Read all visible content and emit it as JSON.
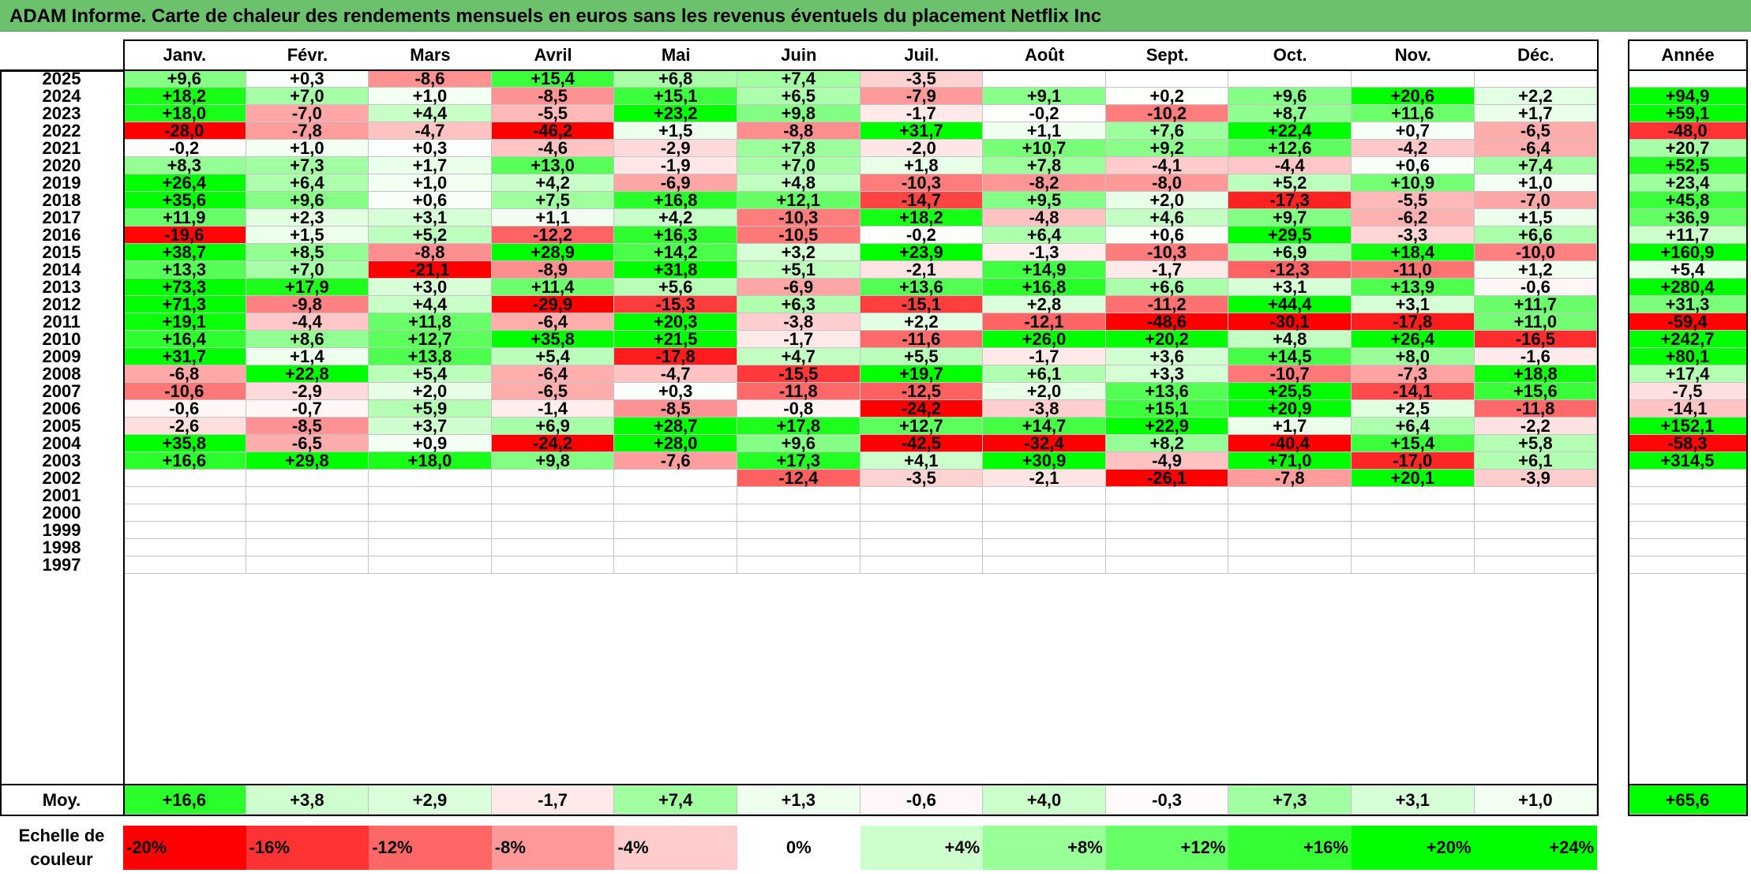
{
  "title": "ADAM Informe. Carte de chaleur des rendements mensuels en euros sans les revenus éventuels du placement Netflix Inc",
  "colors": {
    "title_bar": "#6cc26c",
    "positive": "#00ff00",
    "negative": "#ff0000",
    "neutral": "#ffffff"
  },
  "chart_data": {
    "type": "heatmap",
    "title": "ADAM Informe. Carte de chaleur des rendements mensuels en euros sans les revenus éventuels du placement Netflix Inc",
    "columns": [
      "Janv.",
      "Févr.",
      "Mars",
      "Avril",
      "Mai",
      "Juin",
      "Juil.",
      "Août",
      "Sept.",
      "Oct.",
      "Nov.",
      "Déc."
    ],
    "year_column": "Année",
    "rows": [
      {
        "year": "2025",
        "values": [
          "+9,6",
          "+0,3",
          "-8,6",
          "+15,4",
          "+6,8",
          "+7,4",
          "-3,5",
          "",
          "",
          "",
          "",
          ""
        ],
        "annual": ""
      },
      {
        "year": "2024",
        "values": [
          "+18,2",
          "+7,0",
          "+1,0",
          "-8,5",
          "+15,1",
          "+6,5",
          "-7,9",
          "+9,1",
          "+0,2",
          "+9,6",
          "+20,6",
          "+2,2"
        ],
        "annual": "+94,9"
      },
      {
        "year": "2023",
        "values": [
          "+18,0",
          "-7,0",
          "+4,4",
          "-5,5",
          "+23,2",
          "+9,8",
          "-1,7",
          "-0,2",
          "-10,2",
          "+8,7",
          "+11,6",
          "+1,7"
        ],
        "annual": "+59,1"
      },
      {
        "year": "2022",
        "values": [
          "-28,0",
          "-7,8",
          "-4,7",
          "-46,2",
          "+1,5",
          "-8,8",
          "+31,7",
          "+1,1",
          "+7,6",
          "+22,4",
          "+0,7",
          "-6,5"
        ],
        "annual": "-48,0"
      },
      {
        "year": "2021",
        "values": [
          "-0,2",
          "+1,0",
          "+0,3",
          "-4,6",
          "-2,9",
          "+7,8",
          "-2,0",
          "+10,7",
          "+9,2",
          "+12,6",
          "-4,2",
          "-6,4"
        ],
        "annual": "+20,7"
      },
      {
        "year": "2020",
        "values": [
          "+8,3",
          "+7,3",
          "+1,7",
          "+13,0",
          "-1,9",
          "+7,0",
          "+1,8",
          "+7,8",
          "-4,1",
          "-4,4",
          "+0,6",
          "+7,4"
        ],
        "annual": "+52,5"
      },
      {
        "year": "2019",
        "values": [
          "+26,4",
          "+6,4",
          "+1,0",
          "+4,2",
          "-6,9",
          "+4,8",
          "-10,3",
          "-8,2",
          "-8,0",
          "+5,2",
          "+10,9",
          "+1,0"
        ],
        "annual": "+23,4"
      },
      {
        "year": "2018",
        "values": [
          "+35,6",
          "+9,6",
          "+0,6",
          "+7,5",
          "+16,8",
          "+12,1",
          "-14,7",
          "+9,5",
          "+2,0",
          "-17,3",
          "-5,5",
          "-7,0"
        ],
        "annual": "+45,8"
      },
      {
        "year": "2017",
        "values": [
          "+11,9",
          "+2,3",
          "+3,1",
          "+1,1",
          "+4,2",
          "-10,3",
          "+18,2",
          "-4,8",
          "+4,6",
          "+9,7",
          "-6,2",
          "+1,5"
        ],
        "annual": "+36,9"
      },
      {
        "year": "2016",
        "values": [
          "-19,6",
          "+1,5",
          "+5,2",
          "-12,2",
          "+16,3",
          "-10,5",
          "-0,2",
          "+6,4",
          "+0,6",
          "+29,5",
          "-3,3",
          "+6,6"
        ],
        "annual": "+11,7"
      },
      {
        "year": "2015",
        "values": [
          "+38,7",
          "+8,5",
          "-8,8",
          "+28,9",
          "+14,2",
          "+3,2",
          "+23,9",
          "-1,3",
          "-10,3",
          "+6,9",
          "+18,4",
          "-10,0"
        ],
        "annual": "+160,9"
      },
      {
        "year": "2014",
        "values": [
          "+13,3",
          "+7,0",
          "-21,1",
          "-8,9",
          "+31,8",
          "+5,1",
          "-2,1",
          "+14,9",
          "-1,7",
          "-12,3",
          "-11,0",
          "+1,2"
        ],
        "annual": "+5,4"
      },
      {
        "year": "2013",
        "values": [
          "+73,3",
          "+17,9",
          "+3,0",
          "+11,4",
          "+5,6",
          "-6,9",
          "+13,6",
          "+16,8",
          "+6,6",
          "+3,1",
          "+13,9",
          "-0,6"
        ],
        "annual": "+280,4"
      },
      {
        "year": "2012",
        "values": [
          "+71,3",
          "-9,8",
          "+4,4",
          "-29,9",
          "-15,3",
          "+6,3",
          "-15,1",
          "+2,8",
          "-11,2",
          "+44,4",
          "+3,1",
          "+11,7"
        ],
        "annual": "+31,3"
      },
      {
        "year": "2011",
        "values": [
          "+19,1",
          "-4,4",
          "+11,8",
          "-6,4",
          "+20,3",
          "-3,8",
          "+2,2",
          "-12,1",
          "-48,6",
          "-30,1",
          "-17,8",
          "+11,0"
        ],
        "annual": "-59,4"
      },
      {
        "year": "2010",
        "values": [
          "+16,4",
          "+8,6",
          "+12,7",
          "+35,8",
          "+21,5",
          "-1,7",
          "-11,6",
          "+26,0",
          "+20,2",
          "+4,8",
          "+26,4",
          "-16,5"
        ],
        "annual": "+242,7"
      },
      {
        "year": "2009",
        "values": [
          "+31,7",
          "+1,4",
          "+13,8",
          "+5,4",
          "-17,8",
          "+4,7",
          "+5,5",
          "-1,7",
          "+3,6",
          "+14,5",
          "+8,0",
          "-1,6"
        ],
        "annual": "+80,1"
      },
      {
        "year": "2008",
        "values": [
          "-6,8",
          "+22,8",
          "+5,4",
          "-6,4",
          "-4,7",
          "-15,5",
          "+19,7",
          "+6,1",
          "+3,3",
          "-10,7",
          "-7,3",
          "+18,8"
        ],
        "annual": "+17,4"
      },
      {
        "year": "2007",
        "values": [
          "-10,6",
          "-2,9",
          "+2,0",
          "-6,5",
          "+0,3",
          "-11,8",
          "-12,5",
          "+2,0",
          "+13,6",
          "+25,5",
          "-14,1",
          "+15,6"
        ],
        "annual": "-7,5"
      },
      {
        "year": "2006",
        "values": [
          "-0,6",
          "-0,7",
          "+5,9",
          "-1,4",
          "-8,5",
          "-0,8",
          "-24,2",
          "-3,8",
          "+15,1",
          "+20,9",
          "+2,5",
          "-11,8"
        ],
        "annual": "-14,1"
      },
      {
        "year": "2005",
        "values": [
          "-2,6",
          "-8,5",
          "+3,7",
          "+6,9",
          "+28,7",
          "+17,8",
          "+12,7",
          "+14,7",
          "+22,9",
          "+1,7",
          "+6,4",
          "-2,2"
        ],
        "annual": "+152,1"
      },
      {
        "year": "2004",
        "values": [
          "+35,8",
          "-6,5",
          "+0,9",
          "-24,2",
          "+28,0",
          "+9,6",
          "-42,5",
          "-32,4",
          "+8,2",
          "-40,4",
          "+15,4",
          "+5,8"
        ],
        "annual": "-58,3"
      },
      {
        "year": "2003",
        "values": [
          "+16,6",
          "+29,8",
          "+18,0",
          "+9,8",
          "-7,6",
          "+17,3",
          "+4,1",
          "+30,9",
          "-4,9",
          "+71,0",
          "-17,0",
          "+6,1"
        ],
        "annual": "+314,5"
      },
      {
        "year": "2002",
        "values": [
          "",
          "",
          "",
          "",
          "",
          "-12,4",
          "-3,5",
          "-2,1",
          "-26,1",
          "-7,8",
          "+20,1",
          "-3,9"
        ],
        "annual": ""
      },
      {
        "year": "2001",
        "values": [
          "",
          "",
          "",
          "",
          "",
          "",
          "",
          "",
          "",
          "",
          "",
          ""
        ],
        "annual": ""
      },
      {
        "year": "2000",
        "values": [
          "",
          "",
          "",
          "",
          "",
          "",
          "",
          "",
          "",
          "",
          "",
          ""
        ],
        "annual": ""
      },
      {
        "year": "1999",
        "values": [
          "",
          "",
          "",
          "",
          "",
          "",
          "",
          "",
          "",
          "",
          "",
          ""
        ],
        "annual": ""
      },
      {
        "year": "1998",
        "values": [
          "",
          "",
          "",
          "",
          "",
          "",
          "",
          "",
          "",
          "",
          "",
          ""
        ],
        "annual": ""
      },
      {
        "year": "1997",
        "values": [
          "",
          "",
          "",
          "",
          "",
          "",
          "",
          "",
          "",
          "",
          "",
          ""
        ],
        "annual": ""
      }
    ],
    "average": {
      "label": "Moy.",
      "values": [
        "+16,6",
        "+3,8",
        "+2,9",
        "-1,7",
        "+7,4",
        "+1,3",
        "-0,6",
        "+4,0",
        "-0,3",
        "+7,3",
        "+3,1",
        "+1,0"
      ],
      "annual": "+65,6"
    },
    "color_scale": {
      "label": "Echelle de couleur",
      "stops": [
        "-20%",
        "-16%",
        "-12%",
        "-8%",
        "-4%",
        "0%",
        "+4%",
        "+8%",
        "+12%",
        "+16%",
        "+20%",
        "+24%"
      ]
    }
  }
}
